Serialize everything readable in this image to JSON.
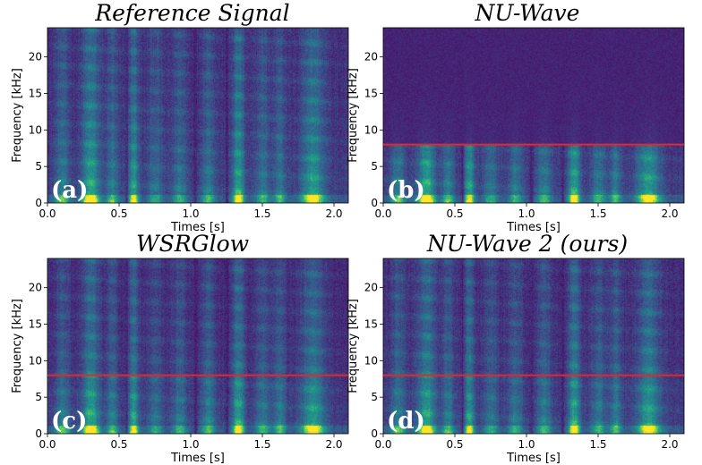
{
  "chart_data": [
    {
      "type": "heatmap",
      "title": "Reference Signal",
      "panel_label": "(a)",
      "xlabel": "Times [s]",
      "ylabel": "Frequency [kHz]",
      "xlim": [
        0,
        2.1
      ],
      "ylim": [
        0,
        24
      ],
      "xticks": [
        "0.0",
        "0.5",
        "1.0",
        "1.5",
        "2.0"
      ],
      "yticks": [
        "0",
        "5",
        "10",
        "15",
        "20"
      ],
      "cutoff_khz": null
    },
    {
      "type": "heatmap",
      "title": "NU-Wave",
      "panel_label": "(b)",
      "xlabel": "Times [s]",
      "ylabel": "Frequency [kHz]",
      "xlim": [
        0,
        2.1
      ],
      "ylim": [
        0,
        24
      ],
      "xticks": [
        "0.0",
        "0.5",
        "1.0",
        "1.5",
        "2.0"
      ],
      "yticks": [
        "0",
        "5",
        "10",
        "15",
        "20"
      ],
      "cutoff_khz": 8
    },
    {
      "type": "heatmap",
      "title": "WSRGlow",
      "panel_label": "(c)",
      "xlabel": "Times [s]",
      "ylabel": "Frequency [kHz]",
      "xlim": [
        0,
        2.1
      ],
      "ylim": [
        0,
        24
      ],
      "xticks": [
        "0.0",
        "0.5",
        "1.0",
        "1.5",
        "2.0"
      ],
      "yticks": [
        "0",
        "5",
        "10",
        "15",
        "20"
      ],
      "cutoff_khz": 8
    },
    {
      "type": "heatmap",
      "title": "NU-Wave 2 (ours)",
      "panel_label": "(d)",
      "xlabel": "Times [s]",
      "ylabel": "Frequency [kHz]",
      "xlim": [
        0,
        2.1
      ],
      "ylim": [
        0,
        24
      ],
      "xticks": [
        "0.0",
        "0.5",
        "1.0",
        "1.5",
        "2.0"
      ],
      "yticks": [
        "0",
        "5",
        "10",
        "15",
        "20"
      ],
      "cutoff_khz": 8
    }
  ],
  "colors": {
    "cutoff_line": "#e8262a",
    "colormap_low": "#440154",
    "colormap_mid": "#21918c",
    "colormap_high": "#fde725"
  }
}
